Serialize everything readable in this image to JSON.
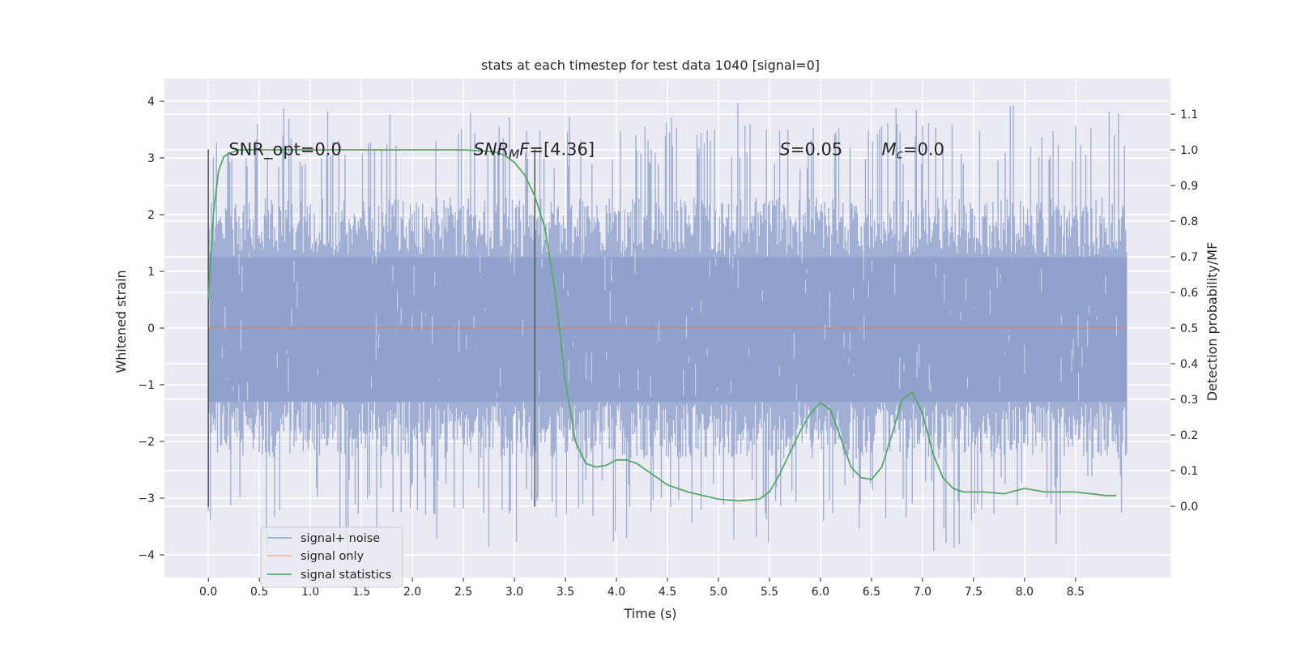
{
  "chart_data": {
    "type": "line",
    "title": "stats at each timestep for test data 1040 [signal=0]",
    "xlabel": "Time (s)",
    "ylabel": "Whitened strain",
    "y2label": "Detection probability/MF",
    "xlim": [
      -0.43,
      9.43
    ],
    "ylim": [
      -4.4,
      4.4
    ],
    "y2lim": [
      -0.2,
      1.2
    ],
    "grid": true,
    "x_ticks": [
      "0.0",
      "0.5",
      "1.0",
      "1.5",
      "2.0",
      "2.5",
      "3.0",
      "3.5",
      "4.0",
      "4.5",
      "5.0",
      "5.5",
      "6.0",
      "6.5",
      "7.0",
      "7.5",
      "8.0",
      "8.5"
    ],
    "y_ticks": [
      "4",
      "3",
      "2",
      "1",
      "0",
      "−1",
      "−2",
      "−3",
      "−4"
    ],
    "y_tick_values": [
      4,
      3,
      2,
      1,
      0,
      -1,
      -2,
      -3,
      -4
    ],
    "y2_ticks": [
      "1.1",
      "1.0",
      "0.9",
      "0.8",
      "0.7",
      "0.6",
      "0.5",
      "0.4",
      "0.3",
      "0.2",
      "0.1",
      "0.0"
    ],
    "y2_tick_values": [
      1.1,
      1.0,
      0.9,
      0.8,
      0.7,
      0.6,
      0.5,
      0.4,
      0.3,
      0.2,
      0.1,
      0.0
    ],
    "noise_band": {
      "x_start": 0.0,
      "x_end": 9.0,
      "core": [
        -1.3,
        1.25
      ],
      "dense": [
        -2.3,
        2.3
      ],
      "peak_max": 4.0,
      "peak_min": -4.0
    },
    "vlines": [
      {
        "x": 0.0,
        "y": [
          -3.15,
          3.15
        ]
      },
      {
        "x": 3.2,
        "y": [
          -3.15,
          3.15
        ]
      }
    ],
    "signal_only": {
      "x": [
        0.0,
        9.0
      ],
      "y": [
        0.0,
        0.0
      ]
    },
    "series": [
      {
        "name": "signal statistics",
        "axis": "y2",
        "color": "#55a868",
        "x": [
          0.0,
          0.05,
          0.1,
          0.15,
          0.2,
          0.3,
          0.5,
          1.0,
          1.5,
          2.0,
          2.5,
          2.8,
          2.9,
          3.0,
          3.1,
          3.2,
          3.3,
          3.4,
          3.5,
          3.6,
          3.7,
          3.8,
          3.9,
          4.0,
          4.1,
          4.2,
          4.3,
          4.4,
          4.5,
          4.7,
          5.0,
          5.2,
          5.4,
          5.5,
          5.6,
          5.7,
          5.8,
          5.9,
          6.0,
          6.1,
          6.2,
          6.3,
          6.4,
          6.5,
          6.6,
          6.7,
          6.8,
          6.9,
          7.0,
          7.1,
          7.2,
          7.3,
          7.4,
          7.6,
          7.8,
          8.0,
          8.2,
          8.5,
          8.8,
          8.9
        ],
        "y": [
          0.58,
          0.82,
          0.94,
          0.98,
          0.99,
          1.0,
          1.0,
          1.0,
          1.0,
          1.0,
          1.0,
          0.995,
          0.985,
          0.965,
          0.93,
          0.87,
          0.78,
          0.6,
          0.35,
          0.18,
          0.12,
          0.11,
          0.115,
          0.13,
          0.13,
          0.12,
          0.1,
          0.08,
          0.06,
          0.04,
          0.02,
          0.015,
          0.02,
          0.04,
          0.09,
          0.15,
          0.21,
          0.26,
          0.29,
          0.27,
          0.19,
          0.11,
          0.08,
          0.075,
          0.11,
          0.2,
          0.3,
          0.32,
          0.26,
          0.15,
          0.08,
          0.05,
          0.04,
          0.04,
          0.035,
          0.05,
          0.04,
          0.04,
          0.03,
          0.03
        ]
      }
    ],
    "annotations": [
      {
        "text": "SNR_opt=0.0",
        "x": 0.2,
        "y2": 0.985,
        "math": false
      },
      {
        "parts": [
          [
            "SNR",
            "i"
          ],
          [
            "M",
            "sub-i"
          ],
          [
            "F",
            "i"
          ],
          [
            "=[4.36]",
            "n"
          ]
        ],
        "x": 2.6,
        "y2": 0.985
      },
      {
        "parts": [
          [
            "S",
            "i"
          ],
          [
            "=0.05",
            "n"
          ]
        ],
        "x": 5.6,
        "y2": 0.985
      },
      {
        "parts": [
          [
            "M",
            "i"
          ],
          [
            "c",
            "sub-i"
          ],
          [
            "=0.0",
            "n"
          ]
        ],
        "x": 6.6,
        "y2": 0.985
      }
    ],
    "legend": {
      "position": "lower-left",
      "entries": [
        {
          "label": "signal+ noise",
          "color": "#8da0cb"
        },
        {
          "label": "signal only",
          "color": "#dd8452"
        },
        {
          "label": "signal statistics",
          "color": "#55a868"
        }
      ]
    }
  }
}
